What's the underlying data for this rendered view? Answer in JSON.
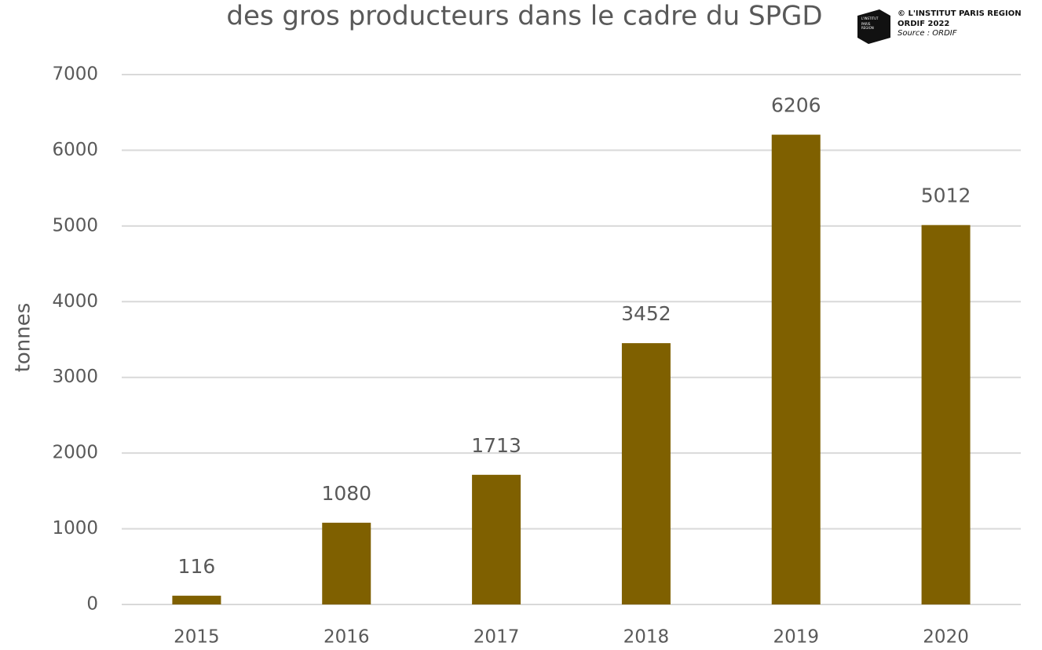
{
  "chart_data": {
    "type": "bar",
    "title": "des gros producteurs dans le cadre du SPGD",
    "credit": {
      "logo_text": [
        "L'INSTITUT",
        "PARIS",
        "REGION"
      ],
      "lines": [
        "© L'INSTITUT PARIS REGION",
        "ORDIF 2022",
        "Source : ORDIF"
      ]
    },
    "y_label": "tonnes",
    "categories": [
      "2015",
      "2016",
      "2017",
      "2018",
      "2019",
      "2020"
    ],
    "values": [
      116,
      1080,
      1713,
      3452,
      6206,
      5012
    ],
    "color": "#7f6000",
    "ylim": [
      0,
      7000
    ],
    "yticks": [
      0,
      1000,
      2000,
      3000,
      4000,
      5000,
      6000,
      7000
    ],
    "grid": true
  }
}
